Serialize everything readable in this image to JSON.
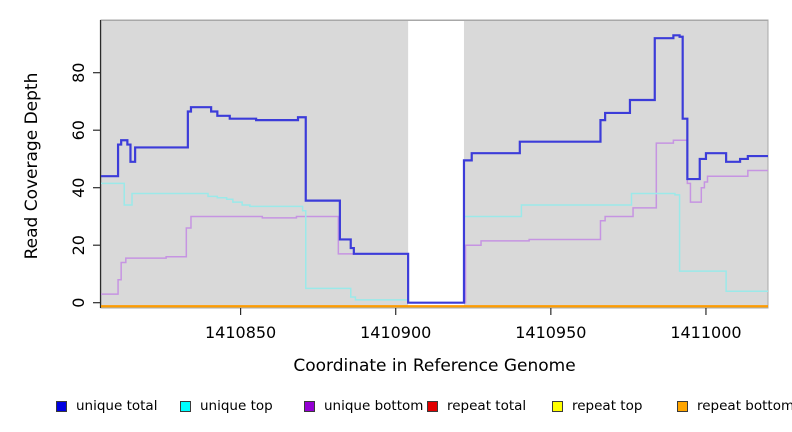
{
  "chart_data": {
    "type": "line",
    "subtype": "step",
    "title": "",
    "xlabel": "Coordinate in Reference Genome",
    "ylabel": "Read Coverage Depth",
    "xlim": [
      1410805,
      1411020
    ],
    "ylim": [
      -1.5,
      98
    ],
    "x_ticks": [
      1410850,
      1410900,
      1410950,
      1411000
    ],
    "y_ticks": [
      0,
      20,
      40,
      60,
      80
    ],
    "grid": false,
    "legend_position": "bottom",
    "panel_bg": "#d9d9d9",
    "panel_border_color": "#a8a8a8",
    "axis_color": "#2b2b2b",
    "gap_region": {
      "start": 1410904,
      "end": 1410922,
      "color": "#ffffff"
    },
    "series": [
      {
        "name": "unique total",
        "legend_color": "#0000e1",
        "line_color": "#3c3cd9",
        "draw_at_bottom_edge": false,
        "points": [
          [
            1410805,
            44
          ],
          [
            1410810.5,
            55
          ],
          [
            1410811.5,
            56.5
          ],
          [
            1410813.5,
            55
          ],
          [
            1410814.5,
            49
          ],
          [
            1410816,
            54
          ],
          [
            1410833,
            66.5
          ],
          [
            1410834,
            68
          ],
          [
            1410840.5,
            66.5
          ],
          [
            1410842.5,
            65
          ],
          [
            1410846.5,
            64
          ],
          [
            1410855,
            63.5
          ],
          [
            1410868.5,
            64.5
          ],
          [
            1410871,
            35.5
          ],
          [
            1410882,
            22
          ],
          [
            1410885.5,
            19
          ],
          [
            1410886.5,
            17
          ],
          [
            1410904,
            0
          ],
          [
            1410922,
            49.5
          ],
          [
            1410924.5,
            52
          ],
          [
            1410940,
            56
          ],
          [
            1410966,
            63.5
          ],
          [
            1410967.5,
            66
          ],
          [
            1410975.5,
            70.5
          ],
          [
            1410983.5,
            92
          ],
          [
            1410989.5,
            93
          ],
          [
            1410991.5,
            92.5
          ],
          [
            1410992.5,
            64
          ],
          [
            1410994,
            43
          ],
          [
            1410998,
            50
          ],
          [
            1411000,
            52
          ],
          [
            1411006.5,
            49
          ],
          [
            1411011,
            50
          ],
          [
            1411013.5,
            51
          ]
        ]
      },
      {
        "name": "unique top",
        "legend_color": "#00ffff",
        "line_color": "#9be9e9",
        "draw_at_bottom_edge": false,
        "points": [
          [
            1410805,
            41.5
          ],
          [
            1410812.5,
            34
          ],
          [
            1410815,
            38
          ],
          [
            1410839.5,
            37
          ],
          [
            1410842.5,
            36.5
          ],
          [
            1410845.5,
            36
          ],
          [
            1410847.5,
            35
          ],
          [
            1410850.5,
            34
          ],
          [
            1410853,
            33.5
          ],
          [
            1410870,
            32
          ],
          [
            1410871,
            5
          ],
          [
            1410885.5,
            2
          ],
          [
            1410887,
            1
          ],
          [
            1410904,
            0
          ],
          [
            1410922,
            30
          ],
          [
            1410940.5,
            34
          ],
          [
            1410976,
            38
          ],
          [
            1410990,
            37.5
          ],
          [
            1410991.5,
            11
          ],
          [
            1411006.5,
            4
          ]
        ]
      },
      {
        "name": "unique bottom",
        "legend_color": "#9400d3",
        "line_color": "#c694e2",
        "draw_at_bottom_edge": false,
        "points": [
          [
            1410805,
            3
          ],
          [
            1410810.5,
            8
          ],
          [
            1410811.5,
            14
          ],
          [
            1410813,
            15.5
          ],
          [
            1410826,
            16
          ],
          [
            1410832.5,
            26
          ],
          [
            1410834,
            30
          ],
          [
            1410857,
            29.5
          ],
          [
            1410868,
            30
          ],
          [
            1410881.5,
            17
          ],
          [
            1410904,
            0
          ],
          [
            1410922.5,
            20
          ],
          [
            1410927.5,
            21.5
          ],
          [
            1410943,
            22
          ],
          [
            1410966,
            28.5
          ],
          [
            1410967.5,
            30
          ],
          [
            1410976.5,
            33
          ],
          [
            1410984,
            55.5
          ],
          [
            1410989.5,
            56.5
          ],
          [
            1410994,
            41.5
          ],
          [
            1410995,
            35
          ],
          [
            1410998.5,
            40
          ],
          [
            1410999.5,
            42
          ],
          [
            1411000.5,
            44
          ],
          [
            1411013.5,
            46
          ]
        ]
      },
      {
        "name": "repeat total",
        "legend_color": "#e00000",
        "line_color": "#e00000",
        "draw_at_bottom_edge": true,
        "points": [
          [
            1410805,
            0
          ]
        ]
      },
      {
        "name": "repeat top",
        "legend_color": "#ffff00",
        "line_color": "#ffff00",
        "draw_at_bottom_edge": true,
        "points": [
          [
            1410805,
            0
          ]
        ]
      },
      {
        "name": "repeat bottom",
        "legend_color": "#ffa500",
        "line_color": "#ff9c00",
        "draw_at_bottom_edge": true,
        "points": [
          [
            1410805,
            0
          ]
        ]
      }
    ]
  }
}
